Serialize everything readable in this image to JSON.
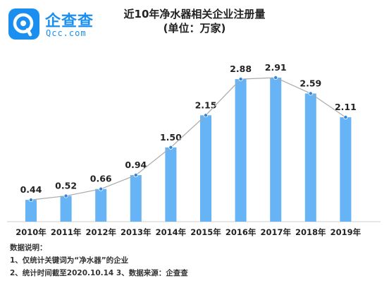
{
  "logo": {
    "name": "企查查",
    "domain": "Qcc.com"
  },
  "notes": {
    "heading": "数据说明：",
    "line1": "1、仅统计关键词为“净水器”的企业",
    "line2": "2、统计时间截至2020.10.14  3、数据来源：企查查"
  },
  "colors": {
    "bar": "#66b3f5",
    "line": "#a9a9a9",
    "marker": "#2e86de",
    "brand": "#1a8ff0"
  },
  "chart_data": {
    "type": "bar",
    "title": "近10年净水器相关企业注册量",
    "subtitle": "(单位：万家)",
    "categories": [
      "2010年",
      "2011年",
      "2012年",
      "2013年",
      "2014年",
      "2015年",
      "2016年",
      "2017年",
      "2018年",
      "2019年"
    ],
    "values": [
      0.44,
      0.52,
      0.66,
      0.94,
      1.5,
      2.15,
      2.88,
      2.91,
      2.59,
      2.11
    ],
    "labels": [
      "0.44",
      "0.52",
      "0.66",
      "0.94",
      "1.50",
      "2.15",
      "2.88",
      "2.91",
      "2.59",
      "2.11"
    ],
    "overlay": "line",
    "xlabel": "",
    "ylabel": "",
    "ylim": [
      0,
      2.91
    ],
    "grid": false,
    "legend": "none"
  }
}
